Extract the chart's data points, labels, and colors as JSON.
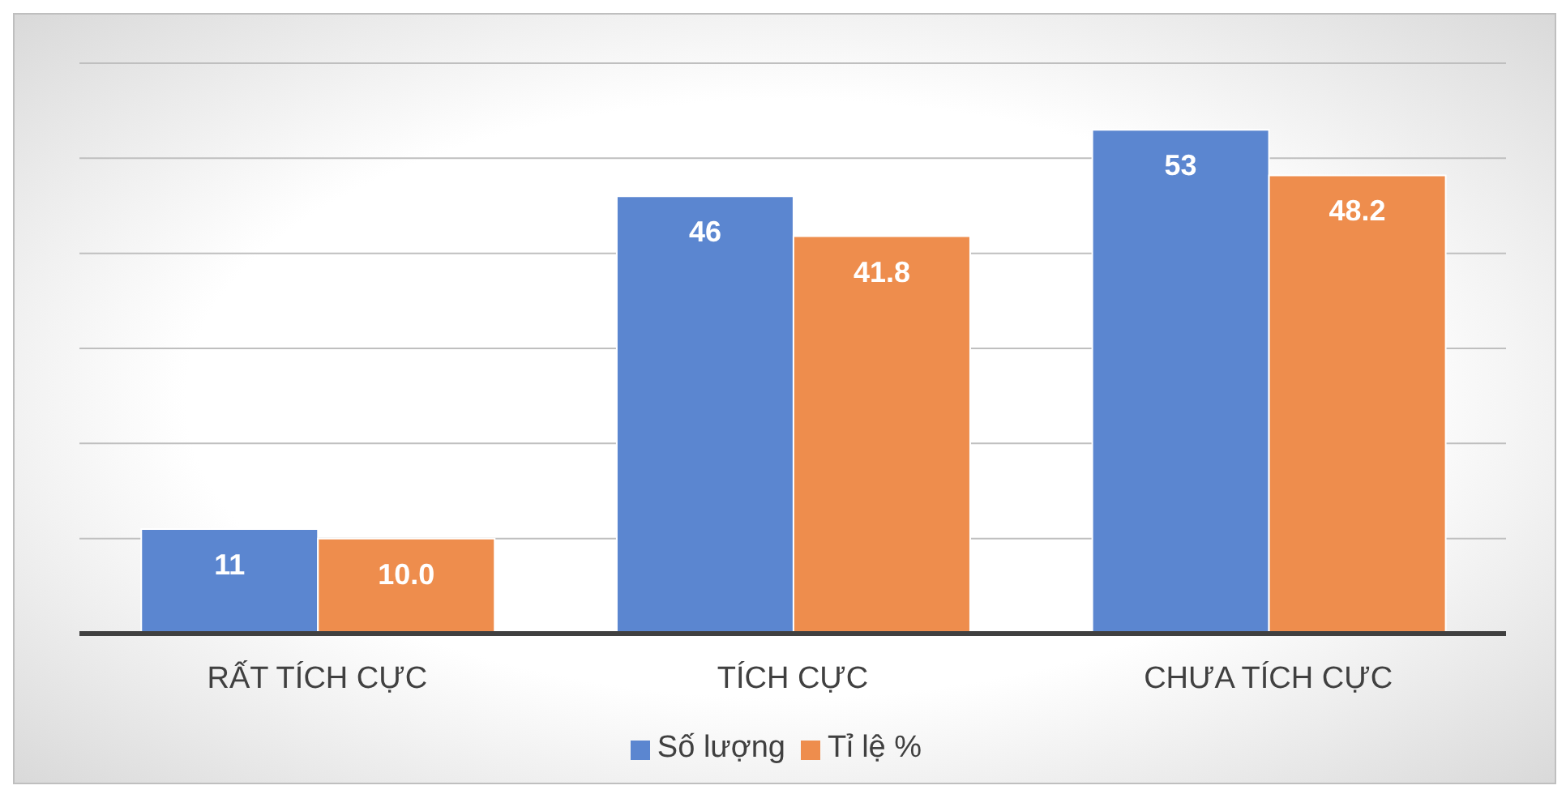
{
  "chart_data": {
    "type": "bar",
    "categories": [
      "RẤT TÍCH CỰC",
      "TÍCH CỰC",
      "CHƯA TÍCH CỰC"
    ],
    "series": [
      {
        "name": "Số lượng",
        "color": "#5b86d0",
        "values": [
          11,
          46,
          53
        ],
        "value_labels": [
          "11",
          "46",
          "53"
        ]
      },
      {
        "name": "Tỉ lệ %",
        "color": "#ee8d4d",
        "values": [
          10.0,
          41.8,
          48.2
        ],
        "value_labels": [
          "10.0",
          "41.8",
          "48.2"
        ]
      }
    ],
    "ylim": [
      0,
      60
    ],
    "yticks": [
      {
        "value": 0,
        "label": null
      },
      {
        "value": 10,
        "label": null
      },
      {
        "value": 20,
        "label": null
      },
      {
        "value": 30,
        "label": null
      },
      {
        "value": 40,
        "label": null
      },
      {
        "value": 50,
        "label": null
      },
      {
        "value": 60,
        "label": null
      }
    ],
    "tick_labels": "x",
    "grid": "y",
    "legend": "bottom"
  }
}
